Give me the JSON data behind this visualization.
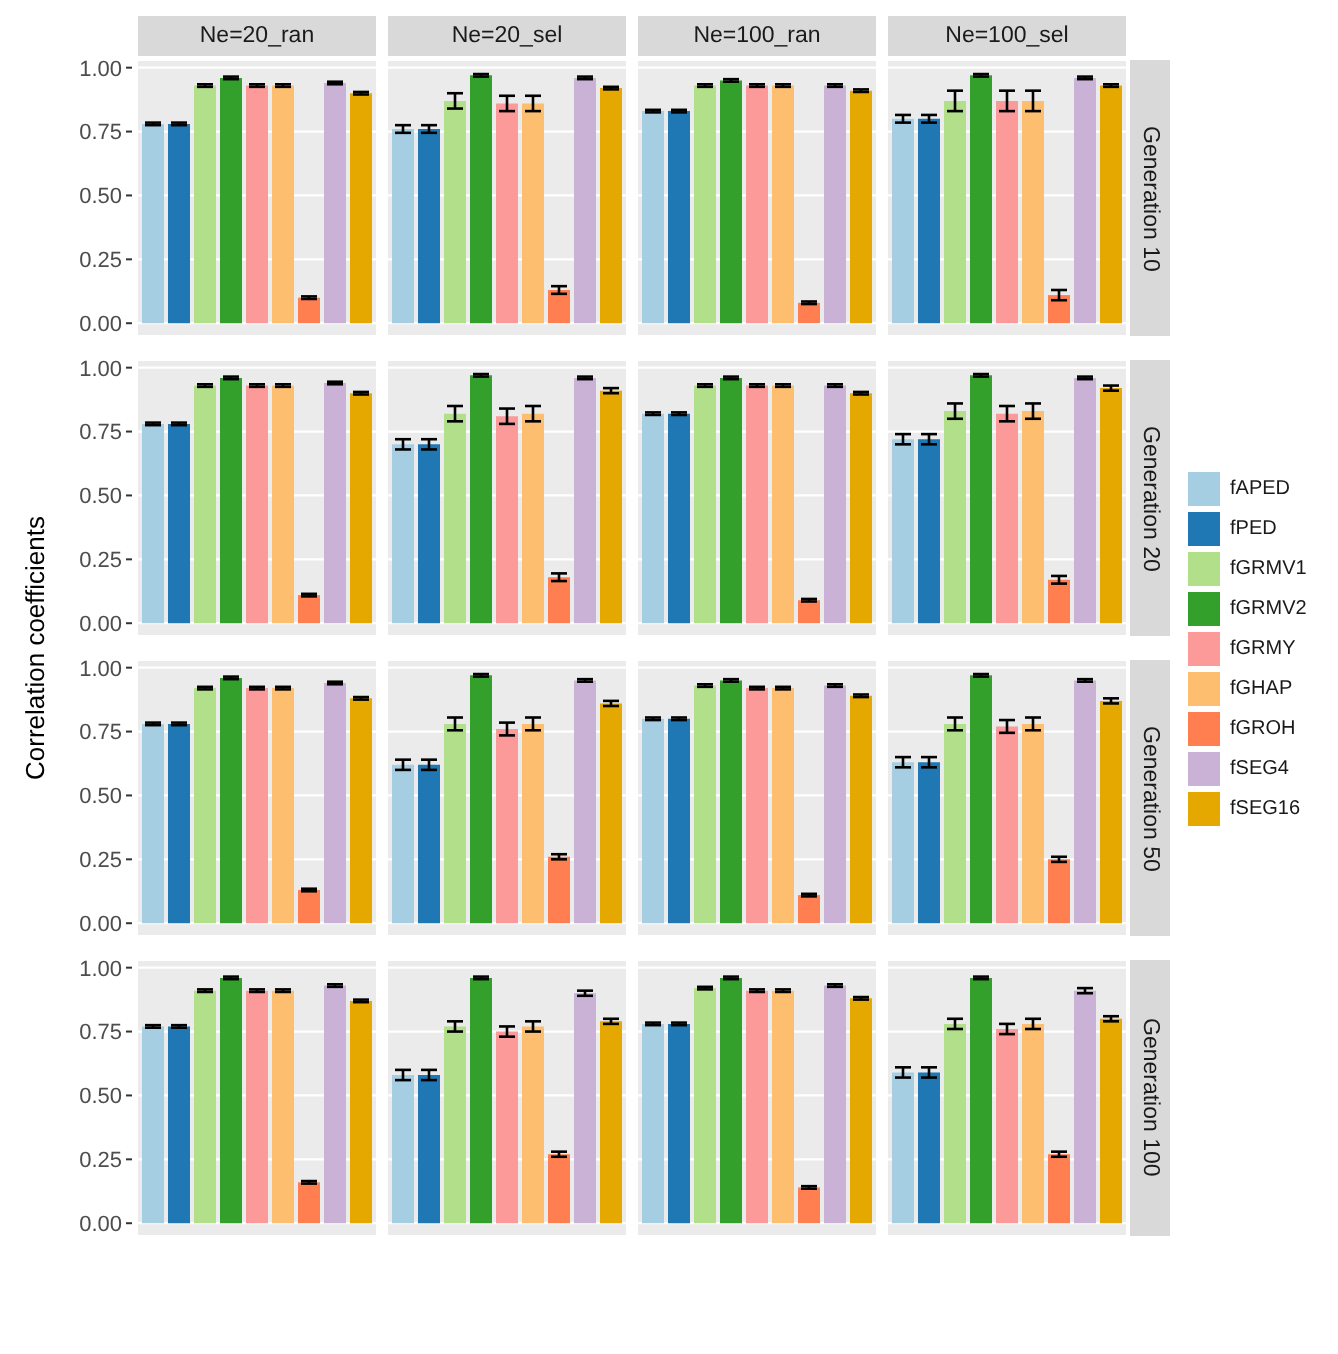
{
  "chart_data": [
    {
      "type": "bar",
      "y2label": "Generation 10",
      "legend": "right",
      "categories": [
        "Ne=20_ran",
        "Ne=20_sel",
        "Ne=100_ran",
        "Ne=100_sel"
      ],
      "ylim": [
        -0.05,
        1.03
      ],
      "yticks": [
        {
          "value": 0,
          "label": "0.00"
        },
        {
          "value": 0.25,
          "label": "0.25"
        },
        {
          "value": 0.5,
          "label": "0.50"
        },
        {
          "value": 0.75,
          "label": "0.75"
        },
        {
          "value": 1,
          "label": "1.00"
        }
      ],
      "grid": "y",
      "series": [
        {
          "name": "fAPED",
          "color": "#a6cee3",
          "values": [
            0.78,
            0.76,
            0.83,
            0.8
          ],
          "errors": [
            0.005,
            0.015,
            0.005,
            0.015
          ]
        },
        {
          "name": "fPED",
          "color": "#1f78b4",
          "values": [
            0.78,
            0.76,
            0.83,
            0.8
          ],
          "errors": [
            0.005,
            0.015,
            0.005,
            0.015
          ]
        },
        {
          "name": "fGRMV1",
          "color": "#b2df8a",
          "values": [
            0.93,
            0.87,
            0.93,
            0.87
          ],
          "errors": [
            0.005,
            0.03,
            0.005,
            0.04
          ]
        },
        {
          "name": "fGRMV2",
          "color": "#33a02c",
          "values": [
            0.96,
            0.97,
            0.95,
            0.97
          ],
          "errors": [
            0.005,
            0.005,
            0.005,
            0.005
          ]
        },
        {
          "name": "fGRMY",
          "color": "#fb9a99",
          "values": [
            0.93,
            0.86,
            0.93,
            0.87
          ],
          "errors": [
            0.005,
            0.03,
            0.005,
            0.04
          ]
        },
        {
          "name": "fGHAP",
          "color": "#fdbf6f",
          "values": [
            0.93,
            0.86,
            0.93,
            0.87
          ],
          "errors": [
            0.005,
            0.03,
            0.005,
            0.04
          ]
        },
        {
          "name": "fGROH",
          "color": "#ff7f50",
          "values": [
            0.1,
            0.13,
            0.08,
            0.11
          ],
          "errors": [
            0.005,
            0.015,
            0.005,
            0.02
          ]
        },
        {
          "name": "fSEG4",
          "color": "#cab2d6",
          "values": [
            0.94,
            0.96,
            0.93,
            0.96
          ],
          "errors": [
            0.005,
            0.005,
            0.005,
            0.005
          ]
        },
        {
          "name": "fSEG16",
          "color": "#e5a800",
          "values": [
            0.9,
            0.92,
            0.91,
            0.93
          ],
          "errors": [
            0.005,
            0.005,
            0.005,
            0.005
          ]
        }
      ]
    },
    {
      "type": "bar",
      "y2label": "Generation 20",
      "categories": [
        null,
        null,
        null,
        null
      ],
      "ylim": [
        -0.05,
        1.03
      ],
      "yticks": [
        {
          "value": 0,
          "label": "0.00"
        },
        {
          "value": 0.25,
          "label": "0.25"
        },
        {
          "value": 0.5,
          "label": "0.50"
        },
        {
          "value": 0.75,
          "label": "0.75"
        },
        {
          "value": 1,
          "label": "1.00"
        }
      ],
      "grid": "y",
      "series": [
        {
          "color": "#a6cee3",
          "values": [
            0.78,
            0.7,
            0.82,
            0.72
          ],
          "errors": [
            0.005,
            0.02,
            0.005,
            0.02
          ]
        },
        {
          "color": "#1f78b4",
          "values": [
            0.78,
            0.7,
            0.82,
            0.72
          ],
          "errors": [
            0.005,
            0.02,
            0.005,
            0.02
          ]
        },
        {
          "color": "#b2df8a",
          "values": [
            0.93,
            0.82,
            0.93,
            0.83
          ],
          "errors": [
            0.005,
            0.03,
            0.005,
            0.03
          ]
        },
        {
          "color": "#33a02c",
          "values": [
            0.96,
            0.97,
            0.96,
            0.97
          ],
          "errors": [
            0.005,
            0.005,
            0.005,
            0.005
          ]
        },
        {
          "color": "#fb9a99",
          "values": [
            0.93,
            0.81,
            0.93,
            0.82
          ],
          "errors": [
            0.005,
            0.03,
            0.005,
            0.03
          ]
        },
        {
          "color": "#fdbf6f",
          "values": [
            0.93,
            0.82,
            0.93,
            0.83
          ],
          "errors": [
            0.005,
            0.03,
            0.005,
            0.03
          ]
        },
        {
          "color": "#ff7f50",
          "values": [
            0.11,
            0.18,
            0.09,
            0.17
          ],
          "errors": [
            0.005,
            0.015,
            0.005,
            0.015
          ]
        },
        {
          "color": "#cab2d6",
          "values": [
            0.94,
            0.96,
            0.93,
            0.96
          ],
          "errors": [
            0.005,
            0.005,
            0.005,
            0.005
          ]
        },
        {
          "color": "#e5a800",
          "values": [
            0.9,
            0.91,
            0.9,
            0.92
          ],
          "errors": [
            0.005,
            0.01,
            0.005,
            0.01
          ]
        }
      ]
    },
    {
      "type": "bar",
      "y2label": "Generation 50",
      "ylabel": "Correlation coefficients",
      "categories": [
        null,
        null,
        null,
        null
      ],
      "ylim": [
        -0.05,
        1.03
      ],
      "yticks": [
        {
          "value": 0,
          "label": "0.00"
        },
        {
          "value": 0.25,
          "label": "0.25"
        },
        {
          "value": 0.5,
          "label": "0.50"
        },
        {
          "value": 0.75,
          "label": "0.75"
        },
        {
          "value": 1,
          "label": "1.00"
        }
      ],
      "grid": "y",
      "series": [
        {
          "color": "#a6cee3",
          "values": [
            0.78,
            0.62,
            0.8,
            0.63
          ],
          "errors": [
            0.005,
            0.02,
            0.005,
            0.02
          ]
        },
        {
          "color": "#1f78b4",
          "values": [
            0.78,
            0.62,
            0.8,
            0.63
          ],
          "errors": [
            0.005,
            0.02,
            0.005,
            0.02
          ]
        },
        {
          "color": "#b2df8a",
          "values": [
            0.92,
            0.78,
            0.93,
            0.78
          ],
          "errors": [
            0.005,
            0.025,
            0.005,
            0.025
          ]
        },
        {
          "color": "#33a02c",
          "values": [
            0.96,
            0.97,
            0.95,
            0.97
          ],
          "errors": [
            0.005,
            0.005,
            0.005,
            0.005
          ]
        },
        {
          "color": "#fb9a99",
          "values": [
            0.92,
            0.76,
            0.92,
            0.77
          ],
          "errors": [
            0.005,
            0.025,
            0.005,
            0.025
          ]
        },
        {
          "color": "#fdbf6f",
          "values": [
            0.92,
            0.78,
            0.92,
            0.78
          ],
          "errors": [
            0.005,
            0.025,
            0.005,
            0.025
          ]
        },
        {
          "color": "#ff7f50",
          "values": [
            0.13,
            0.26,
            0.11,
            0.25
          ],
          "errors": [
            0.005,
            0.01,
            0.005,
            0.01
          ]
        },
        {
          "color": "#cab2d6",
          "values": [
            0.94,
            0.95,
            0.93,
            0.95
          ],
          "errors": [
            0.005,
            0.005,
            0.005,
            0.005
          ]
        },
        {
          "color": "#e5a800",
          "values": [
            0.88,
            0.86,
            0.89,
            0.87
          ],
          "errors": [
            0.005,
            0.01,
            0.005,
            0.01
          ]
        }
      ]
    },
    {
      "type": "bar",
      "y2label": "Generation 100",
      "categories": [
        null,
        null,
        null,
        null
      ],
      "ylim": [
        -0.05,
        1.03
      ],
      "yticks": [
        {
          "value": 0,
          "label": "0.00"
        },
        {
          "value": 0.25,
          "label": "0.25"
        },
        {
          "value": 0.5,
          "label": "0.50"
        },
        {
          "value": 0.75,
          "label": "0.75"
        },
        {
          "value": 1,
          "label": "1.00"
        }
      ],
      "grid": "y",
      "series": [
        {
          "color": "#a6cee3",
          "values": [
            0.77,
            0.58,
            0.78,
            0.59
          ],
          "errors": [
            0.005,
            0.02,
            0.005,
            0.02
          ]
        },
        {
          "color": "#1f78b4",
          "values": [
            0.77,
            0.58,
            0.78,
            0.59
          ],
          "errors": [
            0.005,
            0.02,
            0.005,
            0.02
          ]
        },
        {
          "color": "#b2df8a",
          "values": [
            0.91,
            0.77,
            0.92,
            0.78
          ],
          "errors": [
            0.005,
            0.02,
            0.005,
            0.02
          ]
        },
        {
          "color": "#33a02c",
          "values": [
            0.96,
            0.96,
            0.96,
            0.96
          ],
          "errors": [
            0.005,
            0.005,
            0.005,
            0.005
          ]
        },
        {
          "color": "#fb9a99",
          "values": [
            0.91,
            0.75,
            0.91,
            0.76
          ],
          "errors": [
            0.005,
            0.02,
            0.005,
            0.02
          ]
        },
        {
          "color": "#fdbf6f",
          "values": [
            0.91,
            0.77,
            0.91,
            0.78
          ],
          "errors": [
            0.005,
            0.02,
            0.005,
            0.02
          ]
        },
        {
          "color": "#ff7f50",
          "values": [
            0.16,
            0.27,
            0.14,
            0.27
          ],
          "errors": [
            0.005,
            0.01,
            0.005,
            0.01
          ]
        },
        {
          "color": "#cab2d6",
          "values": [
            0.93,
            0.9,
            0.93,
            0.91
          ],
          "errors": [
            0.005,
            0.01,
            0.005,
            0.01
          ]
        },
        {
          "color": "#e5a800",
          "values": [
            0.87,
            0.79,
            0.88,
            0.8
          ],
          "errors": [
            0.005,
            0.01,
            0.005,
            0.01
          ]
        }
      ]
    }
  ]
}
